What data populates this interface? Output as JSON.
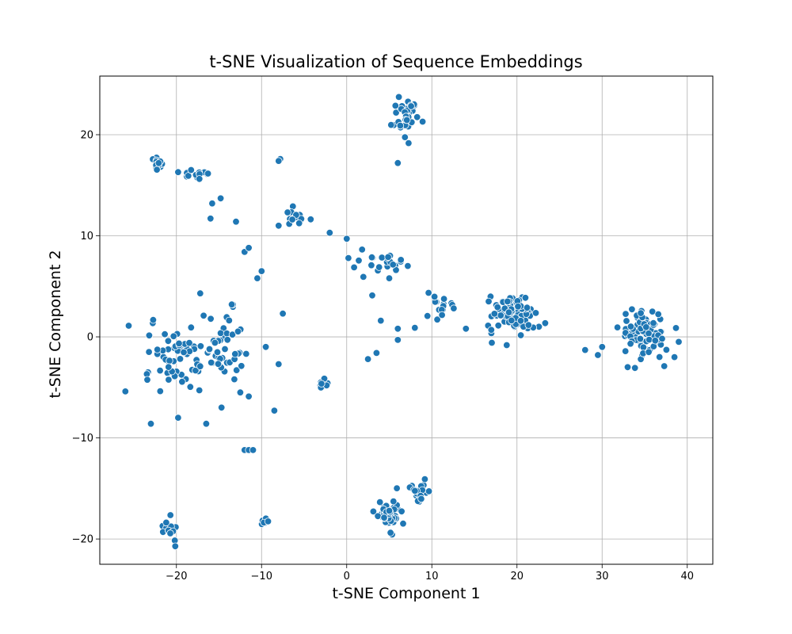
{
  "chart_data": {
    "type": "scatter",
    "title": "t-SNE Visualization of Sequence Embeddings",
    "xlabel": "t-SNE Component 1",
    "ylabel": "t-SNE Component 2",
    "xlim": [
      -29,
      43
    ],
    "ylim": [
      -22.5,
      25.8
    ],
    "xticks": [
      -20,
      -10,
      0,
      10,
      20,
      30,
      40
    ],
    "yticks": [
      -20,
      -10,
      0,
      10,
      20
    ],
    "grid": true,
    "marker_color": "#1f77b4",
    "marker_edge": "#ffffff",
    "clusters": [
      {
        "center": [
          7.0,
          22.0
        ],
        "spread": [
          0.9,
          1.5
        ],
        "points": 34
      },
      {
        "center": [
          -22.2,
          17.1
        ],
        "spread": [
          0.8,
          0.4
        ],
        "points": 20
      },
      {
        "center": [
          -17.8,
          16.0
        ],
        "spread": [
          0.8,
          0.4
        ],
        "points": 14
      },
      {
        "center": [
          -6.0,
          11.9
        ],
        "spread": [
          1.2,
          0.6
        ],
        "points": 12
      },
      {
        "center": [
          4.2,
          7.8
        ],
        "spread": [
          2.5,
          0.9
        ],
        "points": 22
      },
      {
        "center": [
          19.6,
          2.2
        ],
        "spread": [
          1.8,
          1.3
        ],
        "points": 90
      },
      {
        "center": [
          35.0,
          0.4
        ],
        "spread": [
          1.8,
          1.5
        ],
        "points": 78
      },
      {
        "center": [
          -20.5,
          -2.2
        ],
        "spread": [
          2.6,
          2.2
        ],
        "points": 62
      },
      {
        "center": [
          -14.0,
          -1.5
        ],
        "spread": [
          1.6,
          2.5
        ],
        "points": 40
      },
      {
        "center": [
          10.5,
          3.0
        ],
        "spread": [
          1.2,
          0.8
        ],
        "points": 16
      },
      {
        "center": [
          4.8,
          -17.3
        ],
        "spread": [
          1.0,
          0.9
        ],
        "points": 44
      },
      {
        "center": [
          8.5,
          -15.4
        ],
        "spread": [
          1.0,
          0.8
        ],
        "points": 22
      },
      {
        "center": [
          -20.8,
          -18.8
        ],
        "spread": [
          0.6,
          0.8
        ],
        "points": 14
      },
      {
        "center": [
          -9.8,
          -18.3
        ],
        "spread": [
          0.3,
          0.3
        ],
        "points": 8
      },
      {
        "center": [
          -2.6,
          -4.7
        ],
        "spread": [
          0.4,
          0.3
        ],
        "points": 10
      }
    ],
    "scattered_points": [
      [
        -26.0,
        -5.4
      ],
      [
        -25.6,
        1.1
      ],
      [
        -23.0,
        -8.6
      ],
      [
        -19.8,
        16.3
      ],
      [
        -16.0,
        11.7
      ],
      [
        -15.8,
        13.2
      ],
      [
        -14.8,
        13.7
      ],
      [
        -13.0,
        11.4
      ],
      [
        -12.0,
        8.4
      ],
      [
        -11.5,
        8.8
      ],
      [
        -10.5,
        5.8
      ],
      [
        -10.0,
        6.5
      ],
      [
        -7.5,
        2.3
      ],
      [
        -8.0,
        -2.7
      ],
      [
        -8.5,
        -7.3
      ],
      [
        -9.5,
        -1.0
      ],
      [
        -12.0,
        -11.2
      ],
      [
        -11.5,
        -11.2
      ],
      [
        -11.0,
        -11.2
      ],
      [
        -7.8,
        17.6
      ],
      [
        -8.0,
        17.4
      ],
      [
        -8.0,
        11.0
      ],
      [
        -2.0,
        10.3
      ],
      [
        0.0,
        9.7
      ],
      [
        0.2,
        7.8
      ],
      [
        6.0,
        17.2
      ],
      [
        2.5,
        -2.2
      ],
      [
        3.5,
        -1.6
      ],
      [
        4.0,
        1.6
      ],
      [
        3.0,
        4.1
      ],
      [
        5.0,
        5.8
      ],
      [
        6.0,
        0.8
      ],
      [
        6.0,
        -0.3
      ],
      [
        8.0,
        0.9
      ],
      [
        14.0,
        0.8
      ],
      [
        -11.5,
        -5.9
      ],
      [
        -12.5,
        -5.5
      ],
      [
        -13.2,
        -4.2
      ],
      [
        -14.7,
        -7.0
      ],
      [
        -16.5,
        -8.6
      ],
      [
        -19.8,
        -8.0
      ],
      [
        -16.8,
        2.1
      ],
      [
        -17.2,
        4.3
      ],
      [
        -13.5,
        3.2
      ],
      [
        28.0,
        -1.3
      ],
      [
        29.5,
        -1.8
      ],
      [
        30.0,
        -1.0
      ],
      [
        39.0,
        -0.5
      ],
      [
        38.5,
        -2.0
      ],
      [
        37.3,
        -2.9
      ],
      [
        33.0,
        -3.0
      ]
    ]
  }
}
